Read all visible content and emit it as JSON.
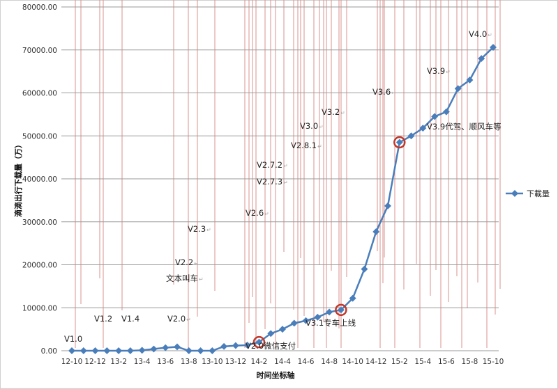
{
  "chart_data": {
    "type": "line",
    "title": "",
    "xlabel": "时间坐标轴",
    "ylabel": "滴滴出行下载量（万）",
    "ylim": [
      0,
      80000
    ],
    "yticks": [
      "0.00",
      "10000.00",
      "20000.00",
      "30000.00",
      "40000.00",
      "50000.00",
      "60000.00",
      "70000.00",
      "80000.00"
    ],
    "grid": true,
    "legend_position": "right",
    "x": [
      "12-10",
      "12-11",
      "12-12",
      "13-1",
      "13-2",
      "13-3",
      "13-4",
      "13-5",
      "13-6",
      "13-7",
      "13-8",
      "13-9",
      "13-10",
      "13-11",
      "13-12",
      "14-1",
      "14-2",
      "14-3",
      "14-4",
      "14-5",
      "14-6",
      "14-7",
      "14-8",
      "14-9",
      "14-10",
      "14-11",
      "14-12",
      "15-1",
      "15-2",
      "15-3",
      "15-4",
      "15-5",
      "15-6",
      "15-7",
      "15-8",
      "15-9",
      "15-10"
    ],
    "xtick_labels": [
      "12-10",
      "12-12",
      "13-2",
      "13-4",
      "13-6",
      "13-8",
      "13-10",
      "13-12",
      "14-2",
      "14-4",
      "14-6",
      "14-8",
      "14-10",
      "14-12",
      "15-2",
      "15-4",
      "15-6",
      "15-8",
      "15-10"
    ],
    "series": [
      {
        "name": "下載量",
        "color": "#4a7ebb",
        "values": [
          0,
          0,
          0,
          0,
          0,
          0,
          100,
          400,
          700,
          900,
          0,
          0,
          0,
          1000,
          1200,
          1300,
          2000,
          4000,
          5000,
          6400,
          7000,
          7800,
          9000,
          9500,
          12200,
          19000,
          27700,
          33700,
          48500,
          50000,
          51800,
          54500,
          55600,
          61000,
          63000,
          68000,
          70600
        ]
      }
    ],
    "highlighted_points": [
      "14-2",
      "14-9",
      "15-2"
    ],
    "highlight_color": "#c0392b",
    "marker_line_color": "#d9908c",
    "annotations": [
      "V1.0",
      "V1.2",
      "V1.4",
      "V2.0",
      "文本叫车",
      "V2.2",
      "V2.3",
      "V2.6",
      "V2.7.3",
      "V2.7.2",
      "V2.8.1",
      "V3.0",
      "V3.2",
      "V2.0微信支付",
      "V3.1专车上线",
      "V3.6",
      "V3.9",
      "V3.9代驾、顺风车等",
      "V4.0"
    ]
  }
}
